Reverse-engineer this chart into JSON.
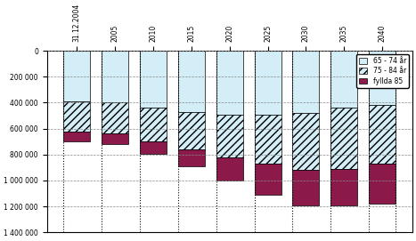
{
  "categories": [
    "31.12.2004",
    "2005",
    "2010",
    "2015",
    "2020",
    "2025",
    "2030",
    "2035",
    "2040"
  ],
  "age_65_74": [
    390000,
    395000,
    440000,
    470000,
    490000,
    490000,
    480000,
    440000,
    420000
  ],
  "age_75_84": [
    230000,
    240000,
    260000,
    290000,
    330000,
    380000,
    440000,
    470000,
    450000
  ],
  "age_85plus": [
    80000,
    82000,
    95000,
    130000,
    180000,
    240000,
    270000,
    280000,
    310000
  ],
  "color_65_74": "#d4eef7",
  "color_85plus": "#8b1a4a",
  "hatch_75_84": "////",
  "ylim_max": 1400000,
  "ytick_values": [
    0,
    200000,
    400000,
    600000,
    800000,
    1000000,
    1200000,
    1400000
  ],
  "ytick_labels": [
    "0",
    "200 000",
    "400 000",
    "600 000",
    "800 000",
    "1 000 000",
    "1 200 000",
    "1 400 000"
  ],
  "legend_labels": [
    "65 - 74 år",
    "75 - 84 år",
    "fyllda 85"
  ],
  "figsize": [
    4.67,
    2.71
  ],
  "dpi": 100,
  "background_color": "#ffffff",
  "bar_width": 0.7,
  "grid_color": "#888888",
  "dotted_line_color": "#000000",
  "legend_fontsize": 5.5,
  "tick_fontsize": 5.5
}
